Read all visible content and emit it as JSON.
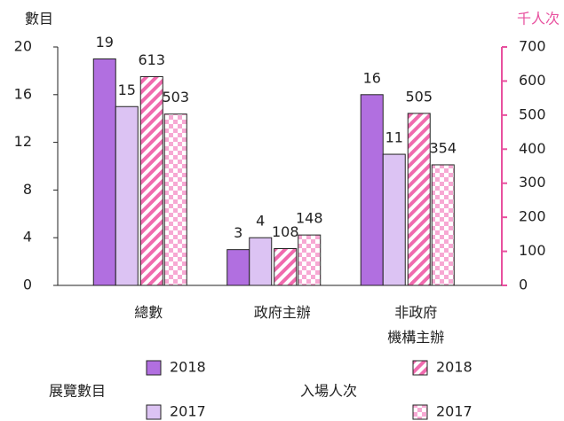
{
  "chart_data": {
    "type": "bar",
    "ylabel": "數目",
    "y2label": "千人次",
    "categories": [
      "總數",
      "政府主辦",
      "非政府\n機構主辦"
    ],
    "ylim": [
      0,
      20
    ],
    "yticks": [
      0,
      4,
      8,
      12,
      16,
      20
    ],
    "y2lim": [
      0,
      700
    ],
    "y2ticks": [
      0,
      100,
      200,
      300,
      400,
      500,
      600,
      700
    ],
    "axis_color": "#222",
    "y2_color": "#e8519f",
    "series": [
      {
        "name": "2018",
        "group": "展覽數目",
        "color": "#b16fe0",
        "fill": "solid",
        "values": [
          19,
          3,
          16
        ]
      },
      {
        "name": "2017",
        "group": "展覽數目",
        "color": "#dcc3f3",
        "fill": "solid",
        "values": [
          15,
          4,
          11
        ]
      },
      {
        "name": "2018",
        "group": "入場人次",
        "color": "#f06aae",
        "fill": "hatch",
        "axis": "y2",
        "values": [
          613,
          108,
          505
        ]
      },
      {
        "name": "2017",
        "group": "入場人次",
        "color": "#f7a8d3",
        "fill": "check",
        "axis": "y2",
        "values": [
          503,
          148,
          354
        ]
      }
    ]
  }
}
